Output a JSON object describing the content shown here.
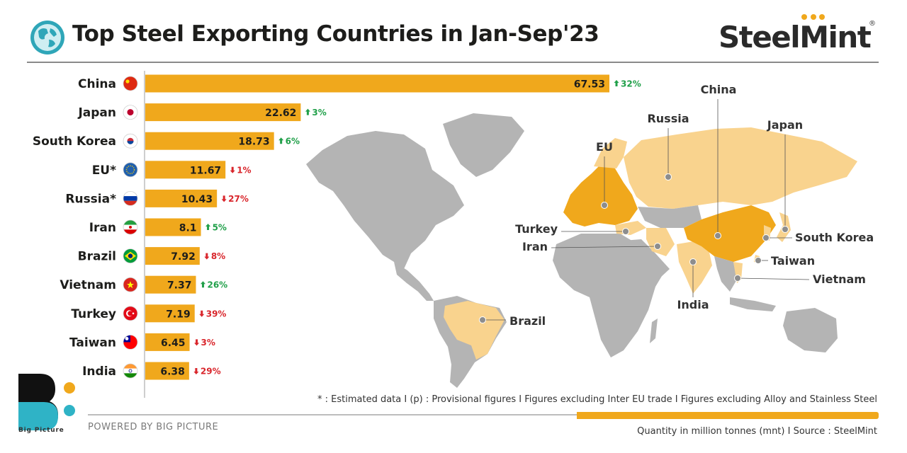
{
  "header": {
    "title": "Top Steel Exporting Countries in Jan-Sep'23",
    "brand": "SteelMint",
    "brand_mark": "®"
  },
  "colors": {
    "bar": "#f0a81c",
    "up": "#21a04a",
    "down": "#d9262c",
    "land": "#b4b4b4",
    "exporter_light": "#f9d38e",
    "exporter_dark": "#f0a81c"
  },
  "chart_data": {
    "type": "bar",
    "orientation": "horizontal",
    "categories": [
      "China",
      "Japan",
      "South Korea",
      "EU*",
      "Russia*",
      "Iran",
      "Brazil",
      "Vietnam",
      "Turkey",
      "Taiwan",
      "India"
    ],
    "values": [
      67.53,
      22.62,
      18.73,
      11.67,
      10.43,
      8.1,
      7.92,
      7.37,
      7.19,
      6.45,
      6.38
    ],
    "value_labels": [
      "67.53",
      "22.62",
      "18.73",
      "11.67",
      "10.43",
      "8.1",
      "7.92",
      "7.37",
      "7.19",
      "6.45",
      "6.38"
    ],
    "changes": [
      {
        "label": "32%",
        "direction": "up"
      },
      {
        "label": "3%",
        "direction": "up"
      },
      {
        "label": "6%",
        "direction": "up"
      },
      {
        "label": "1%",
        "direction": "down"
      },
      {
        "label": "27%",
        "direction": "down"
      },
      {
        "label": "5%",
        "direction": "up"
      },
      {
        "label": "8%",
        "direction": "down"
      },
      {
        "label": "26%",
        "direction": "up"
      },
      {
        "label": "39%",
        "direction": "down"
      },
      {
        "label": "3%",
        "direction": "down"
      },
      {
        "label": "29%",
        "direction": "down"
      }
    ],
    "flags": [
      "china-flag",
      "japan-flag",
      "south-korea-flag",
      "eu-flag",
      "russia-flag",
      "iran-flag",
      "brazil-flag",
      "vietnam-flag",
      "turkey-flag",
      "taiwan-flag",
      "india-flag"
    ],
    "xlim": [
      0,
      67.53
    ]
  },
  "map": {
    "labels": [
      "China",
      "Russia",
      "Japan",
      "EU",
      "Turkey",
      "Iran",
      "South Korea",
      "Taiwan",
      "Vietnam",
      "India",
      "Brazil"
    ]
  },
  "footer": {
    "footnote": "* : Estimated data  I  (p) : Provisional figures  I  Figures excluding Inter EU trade  I  Figures excluding Alloy and Stainless Steel",
    "powered_by": "POWERED BY BIG PICTURE",
    "source": "Quantity in million tonnes (mnt)  I  Source : SteelMint",
    "big_picture": "Big Picture"
  }
}
